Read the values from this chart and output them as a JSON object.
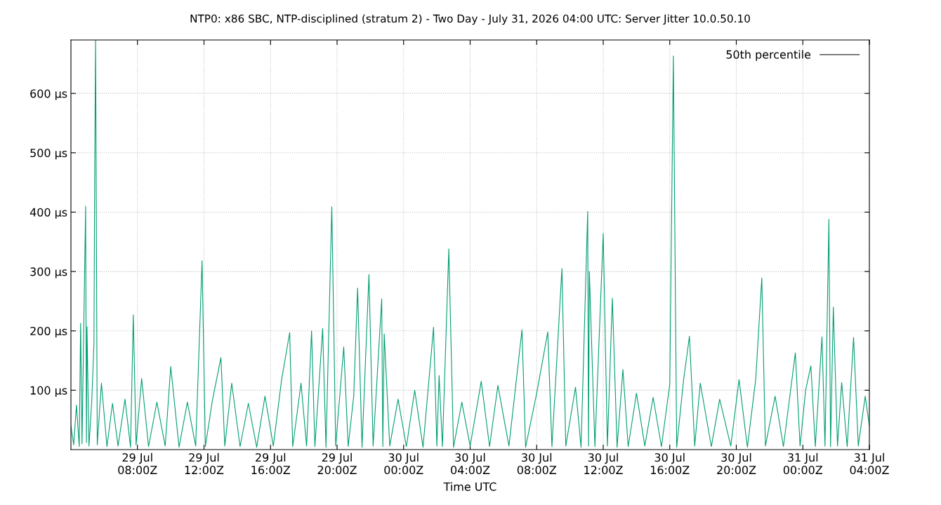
{
  "chart_data": {
    "type": "line",
    "title": "NTP0: x86 SBC, NTP-disciplined (stratum 2) - Two Day - July 31, 2026 04:00 UTC: Server Jitter 10.0.50.10",
    "xlabel": "Time UTC",
    "xlim": [
      "2026-07-29T04:00",
      "2026-07-31T04:00"
    ],
    "xticks": [
      {
        "value": "2026-07-29T08:00",
        "label": "29 Jul\n08:00Z"
      },
      {
        "value": "2026-07-29T12:00",
        "label": "29 Jul\n12:00Z"
      },
      {
        "value": "2026-07-29T16:00",
        "label": "29 Jul\n16:00Z"
      },
      {
        "value": "2026-07-29T20:00",
        "label": "29 Jul\n20:00Z"
      },
      {
        "value": "2026-07-30T00:00",
        "label": "30 Jul\n00:00Z"
      },
      {
        "value": "2026-07-30T04:00",
        "label": "30 Jul\n04:00Z"
      },
      {
        "value": "2026-07-30T08:00",
        "label": "30 Jul\n08:00Z"
      },
      {
        "value": "2026-07-30T12:00",
        "label": "30 Jul\n12:00Z"
      },
      {
        "value": "2026-07-30T16:00",
        "label": "30 Jul\n16:00Z"
      },
      {
        "value": "2026-07-30T20:00",
        "label": "30 Jul\n20:00Z"
      },
      {
        "value": "2026-07-31T00:00",
        "label": "31 Jul\n00:00Z"
      },
      {
        "value": "2026-07-31T04:00",
        "label": "31 Jul\n04:00Z"
      }
    ],
    "ylim": [
      0,
      690
    ],
    "yticks": [
      {
        "value": 100,
        "label": "100 µs"
      },
      {
        "value": 200,
        "label": "200 µs"
      },
      {
        "value": 300,
        "label": "300 µs"
      },
      {
        "value": 400,
        "label": "400 µs"
      },
      {
        "value": 500,
        "label": "500 µs"
      },
      {
        "value": 600,
        "label": "600 µs"
      }
    ],
    "grid": true,
    "legend": "top right",
    "series": [
      {
        "name": "50th percentile",
        "color": "#303030"
      },
      {
        "color": "#009e73",
        "x": [
          "2026-07-29T04:00",
          "2026-07-29T04:10",
          "2026-07-29T04:20",
          "2026-07-29T04:30",
          "2026-07-29T04:35",
          "2026-07-29T04:40",
          "2026-07-29T04:53",
          "2026-07-29T04:56",
          "2026-07-29T04:58",
          "2026-07-29T05:05",
          "2026-07-29T05:15",
          "2026-07-29T05:23",
          "2026-07-29T05:26",
          "2026-07-29T05:29",
          "2026-07-29T05:35",
          "2026-07-29T05:50",
          "2026-07-29T06:10",
          "2026-07-29T06:30",
          "2026-07-29T06:50",
          "2026-07-29T07:15",
          "2026-07-29T07:35",
          "2026-07-29T07:45",
          "2026-07-29T07:55",
          "2026-07-29T08:15",
          "2026-07-29T08:40",
          "2026-07-29T09:10",
          "2026-07-29T09:40",
          "2026-07-29T10:00",
          "2026-07-29T10:30",
          "2026-07-29T11:00",
          "2026-07-29T11:30",
          "2026-07-29T11:53",
          "2026-07-29T12:05",
          "2026-07-29T12:30",
          "2026-07-29T13:01",
          "2026-07-29T13:15",
          "2026-07-29T13:40",
          "2026-07-29T14:10",
          "2026-07-29T14:40",
          "2026-07-29T15:10",
          "2026-07-29T15:40",
          "2026-07-29T16:10",
          "2026-07-29T16:40",
          "2026-07-29T17:09",
          "2026-07-29T17:20",
          "2026-07-29T17:50",
          "2026-07-29T18:10",
          "2026-07-29T18:28",
          "2026-07-29T18:40",
          "2026-07-29T19:08",
          "2026-07-29T19:20",
          "2026-07-29T19:41",
          "2026-07-29T19:55",
          "2026-07-29T20:24",
          "2026-07-29T20:40",
          "2026-07-29T21:00",
          "2026-07-29T21:14",
          "2026-07-29T21:30",
          "2026-07-29T21:55",
          "2026-07-29T22:10",
          "2026-07-29T22:41",
          "2026-07-29T22:45",
          "2026-07-29T22:50",
          "2026-07-29T23:10",
          "2026-07-29T23:40",
          "2026-07-30T00:10",
          "2026-07-30T00:40",
          "2026-07-30T01:10",
          "2026-07-30T01:48",
          "2026-07-30T02:00",
          "2026-07-30T02:08",
          "2026-07-30T02:20",
          "2026-07-30T02:43",
          "2026-07-30T03:00",
          "2026-07-30T03:30",
          "2026-07-30T04:00",
          "2026-07-30T04:40",
          "2026-07-30T05:10",
          "2026-07-30T05:40",
          "2026-07-30T06:20",
          "2026-07-30T07:07",
          "2026-07-30T07:20",
          "2026-07-30T08:00",
          "2026-07-30T08:40",
          "2026-07-30T08:55",
          "2026-07-30T09:31",
          "2026-07-30T09:45",
          "2026-07-30T10:20",
          "2026-07-30T10:40",
          "2026-07-30T11:04",
          "2026-07-30T11:07",
          "2026-07-30T11:10",
          "2026-07-30T11:30",
          "2026-07-30T12:00",
          "2026-07-30T12:15",
          "2026-07-30T12:33",
          "2026-07-30T12:50",
          "2026-07-30T13:11",
          "2026-07-30T13:30",
          "2026-07-30T14:00",
          "2026-07-30T14:30",
          "2026-07-30T15:00",
          "2026-07-30T15:30",
          "2026-07-30T16:00",
          "2026-07-30T16:13",
          "2026-07-30T16:25",
          "2026-07-30T16:50",
          "2026-07-30T17:11",
          "2026-07-30T17:30",
          "2026-07-30T17:50",
          "2026-07-30T18:30",
          "2026-07-30T19:00",
          "2026-07-30T19:40",
          "2026-07-30T20:10",
          "2026-07-30T20:40",
          "2026-07-30T21:10",
          "2026-07-30T21:32",
          "2026-07-30T21:45",
          "2026-07-30T22:20",
          "2026-07-30T22:50",
          "2026-07-30T23:33",
          "2026-07-30T23:50",
          "2026-07-31T00:10",
          "2026-07-31T00:29",
          "2026-07-31T00:45",
          "2026-07-31T01:09",
          "2026-07-31T01:20",
          "2026-07-31T01:34",
          "2026-07-31T01:40",
          "2026-07-31T01:50",
          "2026-07-31T02:05",
          "2026-07-31T02:20",
          "2026-07-31T02:40",
          "2026-07-31T03:03",
          "2026-07-31T03:20",
          "2026-07-31T03:45",
          "2026-07-31T04:00"
        ],
        "values": [
          40,
          8,
          75,
          5,
          213,
          10,
          410,
          12,
          207,
          6,
          80,
          178,
          485,
          690,
          8,
          112,
          5,
          78,
          6,
          85,
          4,
          227,
          8,
          120,
          5,
          80,
          6,
          140,
          4,
          80,
          6,
          318,
          5,
          82,
          155,
          6,
          112,
          5,
          78,
          4,
          90,
          6,
          118,
          197,
          5,
          112,
          6,
          200,
          5,
          204,
          4,
          409,
          6,
          173,
          5,
          90,
          272,
          4,
          295,
          6,
          254,
          5,
          195,
          6,
          85,
          5,
          100,
          4,
          206,
          6,
          125,
          5,
          338,
          4,
          80,
          6,
          115,
          5,
          108,
          6,
          202,
          4,
          95,
          198,
          5,
          305,
          6,
          105,
          4,
          401,
          6,
          300,
          5,
          364,
          6,
          255,
          4,
          135,
          5,
          95,
          6,
          88,
          5,
          110,
          663,
          4,
          118,
          191,
          6,
          112,
          5,
          85,
          6,
          118,
          4,
          118,
          289,
          6,
          90,
          5,
          163,
          6,
          100,
          141,
          5,
          190,
          6,
          388,
          5,
          240,
          6,
          113,
          5,
          189,
          6,
          90,
          40
        ]
      }
    ]
  }
}
